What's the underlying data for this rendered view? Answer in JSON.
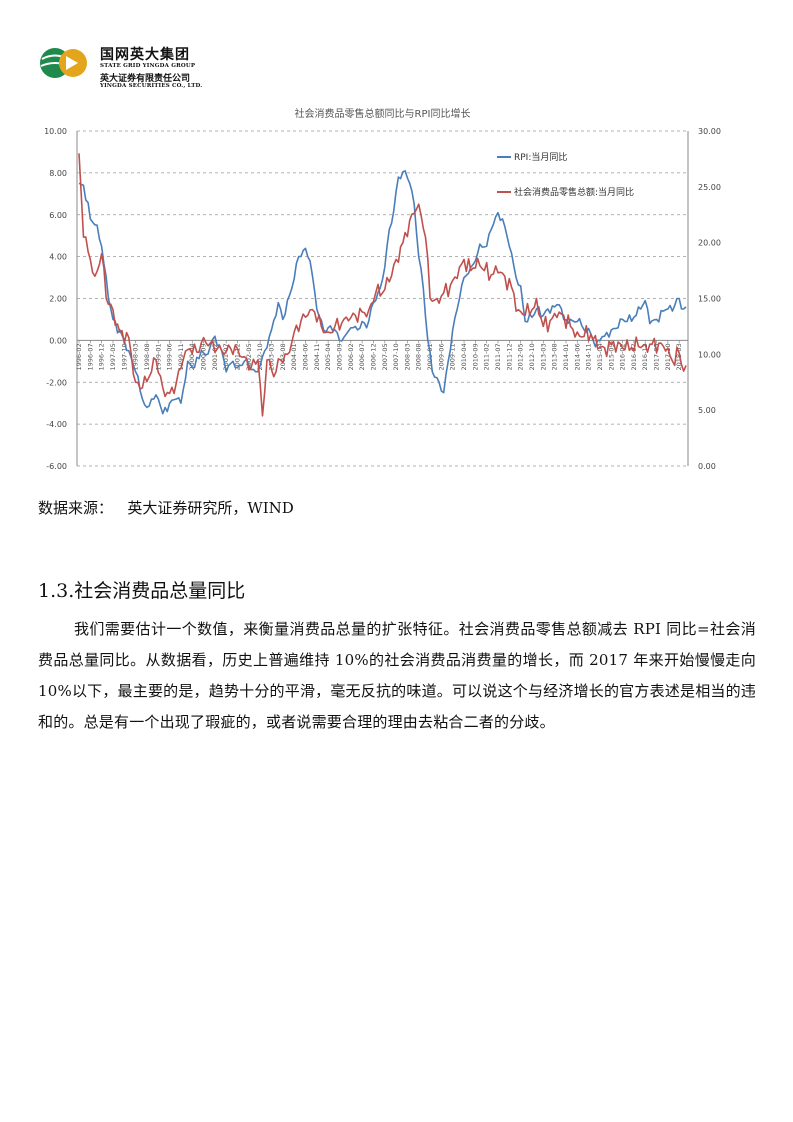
{
  "header": {
    "company_cn": "国网英大集团",
    "company_en": "STATE GRID YINGDA GROUP",
    "subsidiary_cn": "英大证券有限责任公司",
    "subsidiary_en": "YINGDA SECURITIES CO., LTD.",
    "logo_color_green": "#1f8a4c",
    "logo_color_gold": "#e3a51b"
  },
  "chart_data": {
    "type": "line",
    "title": "社会消费品零售总额同比与RPI同比增长",
    "y_left": {
      "min": -6,
      "max": 10,
      "step": 2,
      "ticks": [
        "-6.00",
        "-4.00",
        "-2.00",
        "0.00",
        "2.00",
        "4.00",
        "6.00",
        "8.00",
        "10.00"
      ]
    },
    "y_right": {
      "min": 0,
      "max": 30,
      "step": 5,
      "ticks": [
        "0.00",
        "5.00",
        "10.00",
        "15.00",
        "20.00",
        "25.00",
        "30.00"
      ]
    },
    "x_tick_labels": [
      "1996-02",
      "1996-07",
      "1996-12",
      "1997-05",
      "1997-10",
      "1998-03",
      "1998-08",
      "1999-01",
      "1999-06",
      "1999-11",
      "2000-04",
      "2000-09",
      "2001-02",
      "2001-07",
      "2001-12",
      "2002-05",
      "2002-10",
      "2003-03",
      "2003-08",
      "2004-01",
      "2004-06",
      "2004-11",
      "2005-04",
      "2005-09",
      "2006-02",
      "2006-07",
      "2006-12",
      "2007-05",
      "2007-10",
      "2008-03",
      "2008-08",
      "2009-01",
      "2009-06",
      "2009-11",
      "2010-04",
      "2010-09",
      "2011-02",
      "2011-07",
      "2011-12",
      "2012-05",
      "2012-10",
      "2013-03",
      "2013-08",
      "2014-01",
      "2014-06",
      "2014-11",
      "2015-04",
      "2015-09",
      "2016-02",
      "2016-07",
      "2016-12",
      "2017-05",
      "2017-10",
      "2018-03"
    ],
    "grid": "horizontal dashed",
    "legend_position": "top-right",
    "series": [
      {
        "name": "RPI:当月同比",
        "axis": "left",
        "color": "#4a7ebb",
        "anchors": [
          [
            "1996-02",
            7.5
          ],
          [
            "1996-04",
            7.4
          ],
          [
            "1996-07",
            5.8
          ],
          [
            "1996-10",
            5.5
          ],
          [
            "1996-12",
            4.5
          ],
          [
            "1997-03",
            2.0
          ],
          [
            "1997-05",
            1.0
          ],
          [
            "1997-10",
            0.0
          ],
          [
            "1997-12",
            -0.5
          ],
          [
            "1998-03",
            -1.5
          ],
          [
            "1998-06",
            -2.8
          ],
          [
            "1998-08",
            -3.2
          ],
          [
            "1998-10",
            -2.8
          ],
          [
            "1999-01",
            -2.8
          ],
          [
            "1999-03",
            -3.5
          ],
          [
            "1999-06",
            -3.0
          ],
          [
            "1999-09",
            -2.8
          ],
          [
            "1999-11",
            -3.0
          ],
          [
            "2000-02",
            -1.0
          ],
          [
            "2000-05",
            -1.3
          ],
          [
            "2000-08",
            -0.5
          ],
          [
            "2000-10",
            -0.7
          ],
          [
            "2001-02",
            0.2
          ],
          [
            "2001-05",
            -0.5
          ],
          [
            "2001-07",
            -1.5
          ],
          [
            "2001-10",
            -1.0
          ],
          [
            "2001-12",
            -1.3
          ],
          [
            "2002-03",
            -1.0
          ],
          [
            "2002-05",
            -1.2
          ],
          [
            "2002-08",
            -1.5
          ],
          [
            "2002-10",
            -1.2
          ],
          [
            "2002-12",
            -0.5
          ],
          [
            "2003-03",
            0.5
          ],
          [
            "2003-06",
            1.8
          ],
          [
            "2003-08",
            1.0
          ],
          [
            "2003-12",
            2.5
          ],
          [
            "2004-03",
            4.0
          ],
          [
            "2004-06",
            4.4
          ],
          [
            "2004-08",
            3.8
          ],
          [
            "2004-11",
            1.5
          ],
          [
            "2005-02",
            0.5
          ],
          [
            "2005-04",
            0.6
          ],
          [
            "2005-07",
            0.5
          ],
          [
            "2005-09",
            0.0
          ],
          [
            "2005-12",
            0.3
          ],
          [
            "2006-02",
            0.6
          ],
          [
            "2006-05",
            0.5
          ],
          [
            "2006-07",
            0.9
          ],
          [
            "2006-09",
            0.6
          ],
          [
            "2006-12",
            1.8
          ],
          [
            "2007-03",
            2.5
          ],
          [
            "2007-05",
            3.5
          ],
          [
            "2007-07",
            5.3
          ],
          [
            "2007-09",
            6.2
          ],
          [
            "2007-11",
            7.8
          ],
          [
            "2008-02",
            8.1
          ],
          [
            "2008-04",
            7.5
          ],
          [
            "2008-06",
            6.5
          ],
          [
            "2008-08",
            4.0
          ],
          [
            "2008-10",
            2.5
          ],
          [
            "2008-12",
            0.0
          ],
          [
            "2009-02",
            -1.5
          ],
          [
            "2009-05",
            -2.0
          ],
          [
            "2009-07",
            -2.5
          ],
          [
            "2009-09",
            -1.0
          ],
          [
            "2009-11",
            0.5
          ],
          [
            "2010-02",
            2.0
          ],
          [
            "2010-04",
            3.0
          ],
          [
            "2010-07",
            3.5
          ],
          [
            "2010-09",
            3.8
          ],
          [
            "2010-11",
            4.6
          ],
          [
            "2011-02",
            4.5
          ],
          [
            "2011-04",
            5.3
          ],
          [
            "2011-07",
            6.1
          ],
          [
            "2011-09",
            5.8
          ],
          [
            "2011-12",
            4.5
          ],
          [
            "2012-03",
            3.0
          ],
          [
            "2012-05",
            2.6
          ],
          [
            "2012-07",
            0.9
          ],
          [
            "2012-10",
            1.1
          ],
          [
            "2012-12",
            1.5
          ],
          [
            "2013-03",
            1.2
          ],
          [
            "2013-05",
            1.5
          ],
          [
            "2013-08",
            1.6
          ],
          [
            "2013-10",
            1.7
          ],
          [
            "2013-12",
            1.0
          ],
          [
            "2014-03",
            1.0
          ],
          [
            "2014-06",
            0.9
          ],
          [
            "2014-08",
            0.7
          ],
          [
            "2014-10",
            0.4
          ],
          [
            "2014-12",
            0.3
          ],
          [
            "2015-02",
            -0.3
          ],
          [
            "2015-04",
            0.0
          ],
          [
            "2015-06",
            0.2
          ],
          [
            "2015-09",
            0.5
          ],
          [
            "2015-12",
            0.6
          ],
          [
            "2016-02",
            1.0
          ],
          [
            "2016-04",
            0.9
          ],
          [
            "2016-07",
            1.1
          ],
          [
            "2016-10",
            1.5
          ],
          [
            "2016-12",
            1.9
          ],
          [
            "2017-02",
            0.8
          ],
          [
            "2017-05",
            1.0
          ],
          [
            "2017-08",
            1.4
          ],
          [
            "2017-10",
            1.5
          ],
          [
            "2017-12",
            1.4
          ],
          [
            "2018-02",
            2.0
          ],
          [
            "2018-04",
            1.5
          ],
          [
            "2018-06",
            1.6
          ]
        ]
      },
      {
        "name": "社会消费品零售总额:当月同比",
        "axis": "right",
        "color": "#c0504d",
        "anchors": [
          [
            "1996-02",
            28.0
          ],
          [
            "1996-04",
            20.5
          ],
          [
            "1996-07",
            18.5
          ],
          [
            "1996-09",
            17.0
          ],
          [
            "1996-12",
            19.0
          ],
          [
            "1997-02",
            15.0
          ],
          [
            "1997-05",
            14.0
          ],
          [
            "1997-08",
            12.0
          ],
          [
            "1997-12",
            11.5
          ],
          [
            "1998-03",
            7.5
          ],
          [
            "1998-06",
            7.0
          ],
          [
            "1998-09",
            8.0
          ],
          [
            "1998-12",
            9.5
          ],
          [
            "1999-03",
            7.0
          ],
          [
            "1999-06",
            6.5
          ],
          [
            "1999-09",
            7.5
          ],
          [
            "1999-12",
            9.5
          ],
          [
            "2000-03",
            10.5
          ],
          [
            "2000-06",
            10.2
          ],
          [
            "2000-09",
            11.5
          ],
          [
            "2000-12",
            11.0
          ],
          [
            "2001-03",
            10.5
          ],
          [
            "2001-06",
            10.0
          ],
          [
            "2001-09",
            10.5
          ],
          [
            "2001-12",
            10.5
          ],
          [
            "2002-03",
            9.8
          ],
          [
            "2002-06",
            8.8
          ],
          [
            "2002-09",
            9.5
          ],
          [
            "2002-11",
            4.5
          ],
          [
            "2003-01",
            9.5
          ],
          [
            "2003-04",
            8.0
          ],
          [
            "2003-07",
            9.5
          ],
          [
            "2003-10",
            10.0
          ],
          [
            "2004-01",
            12.0
          ],
          [
            "2004-04",
            13.0
          ],
          [
            "2004-07",
            13.5
          ],
          [
            "2004-10",
            13.8
          ],
          [
            "2005-01",
            12.5
          ],
          [
            "2005-04",
            12.0
          ],
          [
            "2005-07",
            12.5
          ],
          [
            "2005-10",
            12.8
          ],
          [
            "2006-01",
            13.0
          ],
          [
            "2006-04",
            13.5
          ],
          [
            "2006-07",
            13.8
          ],
          [
            "2006-10",
            14.0
          ],
          [
            "2007-01",
            15.5
          ],
          [
            "2007-04",
            15.5
          ],
          [
            "2007-07",
            16.5
          ],
          [
            "2007-10",
            18.5
          ],
          [
            "2008-01",
            20.0
          ],
          [
            "2008-04",
            22.0
          ],
          [
            "2008-07",
            23.0
          ],
          [
            "2008-09",
            22.5
          ],
          [
            "2008-11",
            20.5
          ],
          [
            "2009-01",
            15.0
          ],
          [
            "2009-04",
            15.0
          ],
          [
            "2009-07",
            15.5
          ],
          [
            "2009-10",
            16.2
          ],
          [
            "2010-01",
            16.8
          ],
          [
            "2010-04",
            18.5
          ],
          [
            "2010-07",
            17.5
          ],
          [
            "2010-10",
            18.6
          ],
          [
            "2011-01",
            17.5
          ],
          [
            "2011-04",
            17.1
          ],
          [
            "2011-07",
            17.3
          ],
          [
            "2011-10",
            17.0
          ],
          [
            "2012-01",
            16.0
          ],
          [
            "2012-04",
            14.0
          ],
          [
            "2012-07",
            13.5
          ],
          [
            "2012-10",
            14.0
          ],
          [
            "2012-12",
            15.0
          ],
          [
            "2013-03",
            12.5
          ],
          [
            "2013-06",
            13.0
          ],
          [
            "2013-09",
            13.3
          ],
          [
            "2013-12",
            13.5
          ],
          [
            "2014-03",
            12.5
          ],
          [
            "2014-06",
            12.0
          ],
          [
            "2014-09",
            11.6
          ],
          [
            "2014-12",
            11.8
          ],
          [
            "2015-03",
            10.5
          ],
          [
            "2015-06",
            10.6
          ],
          [
            "2015-09",
            10.9
          ],
          [
            "2015-12",
            11.1
          ],
          [
            "2016-03",
            10.4
          ],
          [
            "2016-06",
            10.6
          ],
          [
            "2016-09",
            10.7
          ],
          [
            "2016-12",
            10.9
          ],
          [
            "2017-03",
            10.9
          ],
          [
            "2017-06",
            11.0
          ],
          [
            "2017-09",
            10.3
          ],
          [
            "2017-12",
            9.4
          ],
          [
            "2018-03",
            10.1
          ],
          [
            "2018-05",
            8.5
          ],
          [
            "2018-06",
            9.0
          ]
        ]
      }
    ]
  },
  "source_label": "数据来源：",
  "source_value": "英大证券研究所，WIND",
  "section": {
    "title": "1.3.社会消费品总量同比",
    "paragraph": "我们需要估计一个数值，来衡量消费品总量的扩张特征。社会消费品零售总额减去 RPI 同比=社会消费品总量同比。从数据看，历史上普遍维持 10%的社会消费品消费量的增长，而 2017 年来开始慢慢走向 10%以下，最主要的是，趋势十分的平滑，毫无反抗的味道。可以说这个与经济增长的官方表述是相当的违和的。总是有一个出现了瑕疵的，或者说需要合理的理由去粘合二者的分歧。"
  }
}
